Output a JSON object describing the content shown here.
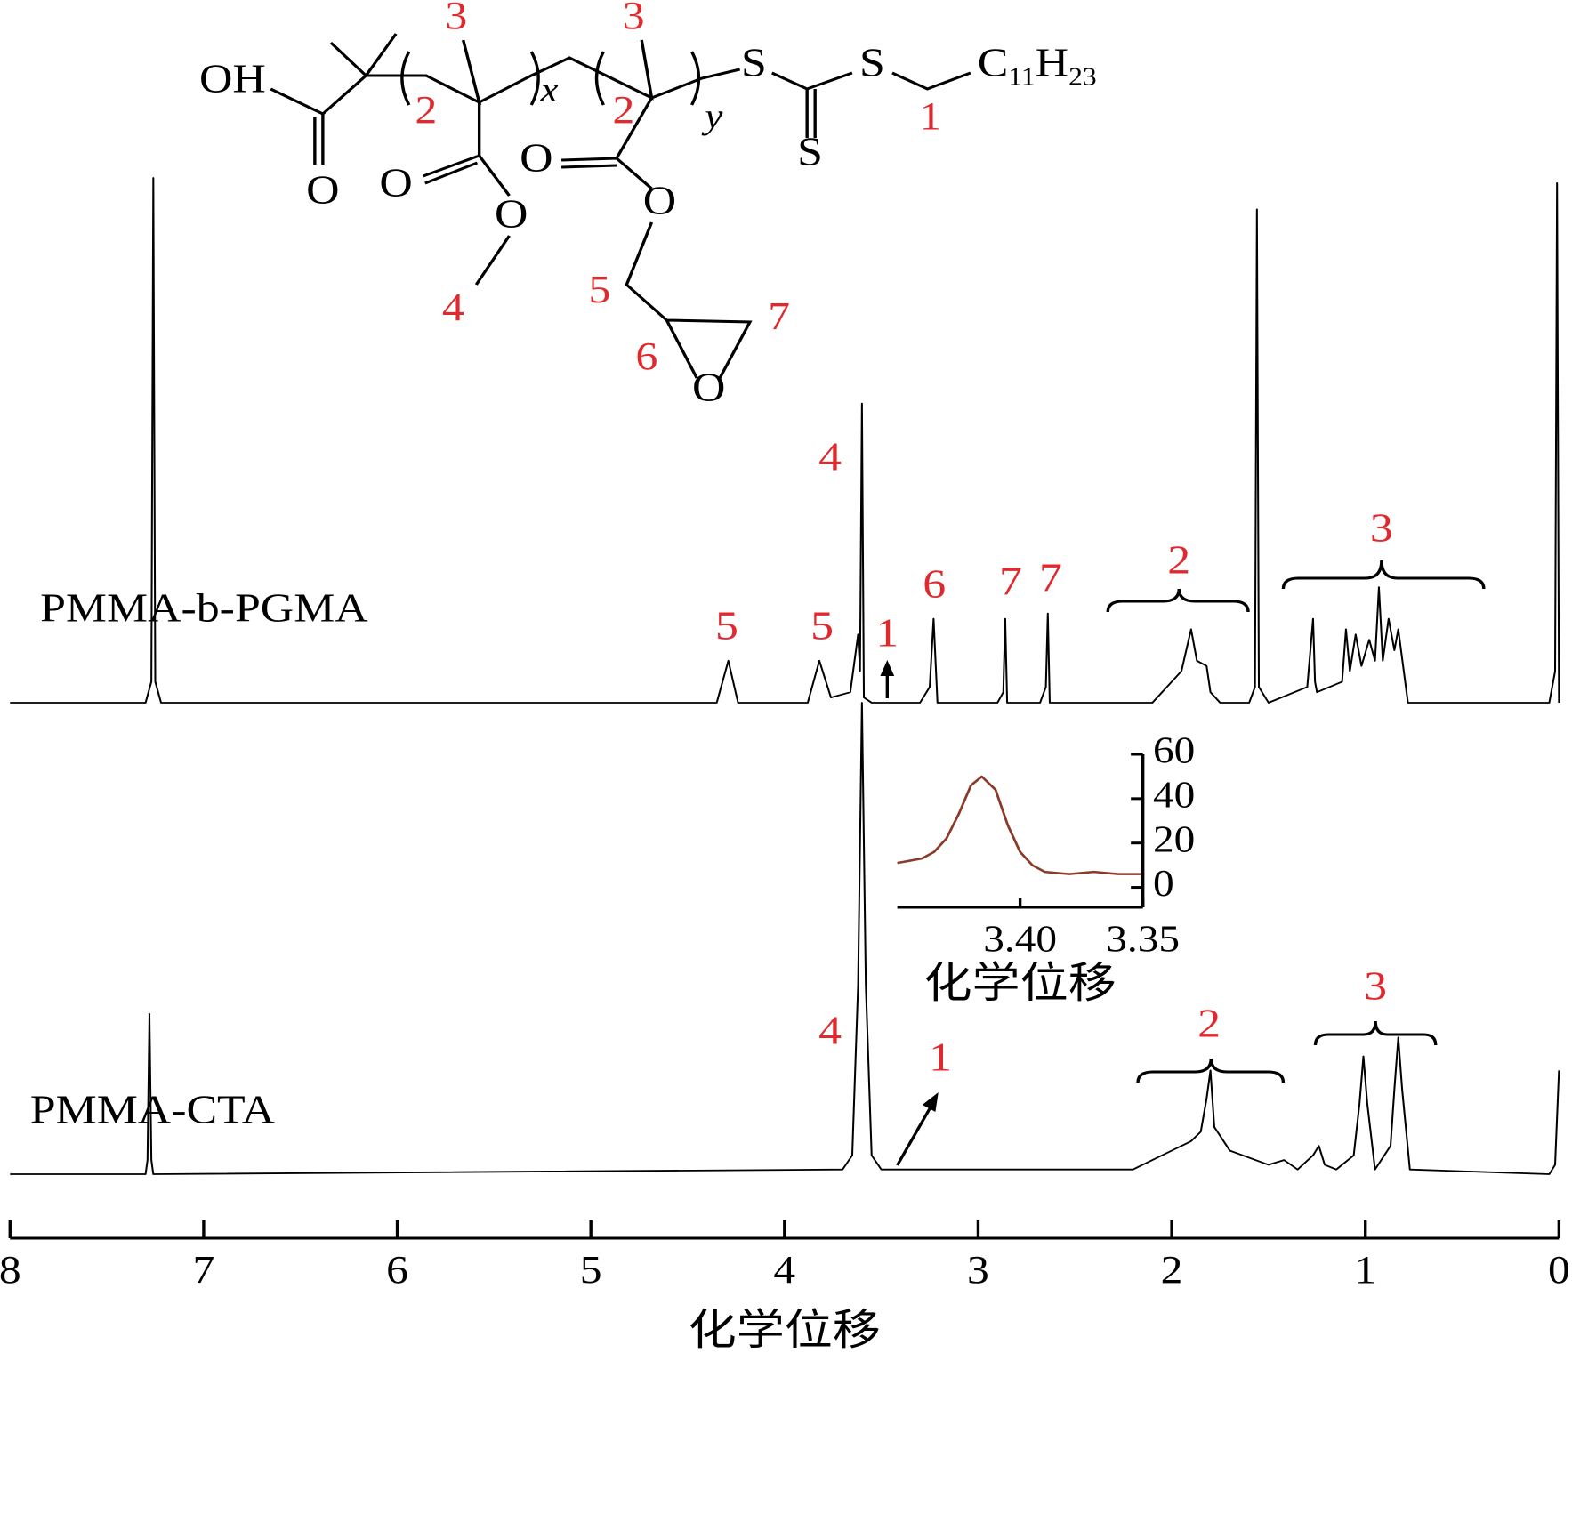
{
  "chart_data": [
    {
      "type": "line",
      "x": [
        8,
        7.3,
        7.27,
        7.26,
        7.25,
        7.22,
        5.5,
        4.35,
        4.29,
        4.24,
        3.88,
        3.82,
        3.76,
        3.66,
        3.62,
        3.61,
        3.6,
        3.59,
        3.55,
        3.3,
        3.25,
        3.23,
        3.21,
        2.9,
        2.87,
        2.86,
        2.85,
        2.68,
        2.65,
        2.64,
        2.63,
        2.6,
        2.1,
        2.0,
        1.95,
        1.9,
        1.87,
        1.82,
        1.8,
        1.75,
        1.6,
        1.57,
        1.56,
        1.55,
        1.5,
        1.3,
        1.27,
        1.26,
        1.25,
        1.12,
        1.1,
        1.08,
        1.05,
        1.02,
        0.98,
        0.95,
        0.93,
        0.91,
        0.88,
        0.85,
        0.83,
        0.78,
        0.05,
        0.02,
        0.01,
        0
      ],
      "series": [
        {
          "name": "PMMA-b-PGMA",
          "color": "#000000",
          "values": [
            0,
            0,
            4,
            100,
            4,
            0,
            0,
            0,
            8,
            0,
            0,
            8,
            1,
            2,
            13,
            6,
            57,
            1,
            0,
            0,
            3,
            16,
            0,
            0,
            2,
            16,
            0,
            0,
            3,
            17,
            0,
            0,
            0,
            4,
            6,
            14,
            8,
            7,
            2,
            0,
            0,
            3,
            94,
            3,
            0,
            3,
            16,
            4,
            2,
            4,
            14,
            6,
            13,
            7,
            12,
            8,
            22,
            8,
            16,
            10,
            14,
            0,
            0,
            6,
            99,
            0
          ]
        }
      ],
      "xlim": [
        8,
        0
      ],
      "ylim": [
        0,
        100
      ],
      "annotations": [
        "4",
        "5",
        "5",
        "1",
        "6",
        "7",
        "7",
        "2",
        "3"
      ]
    },
    {
      "type": "line",
      "x": [
        8,
        7.3,
        7.29,
        7.28,
        7.27,
        7.26,
        3.7,
        3.65,
        3.62,
        3.6,
        3.58,
        3.55,
        3.5,
        2.2,
        2.0,
        1.9,
        1.85,
        1.82,
        1.8,
        1.78,
        1.7,
        1.5,
        1.42,
        1.35,
        1.27,
        1.24,
        1.21,
        1.15,
        1.06,
        1.03,
        1.01,
        0.99,
        0.95,
        0.87,
        0.85,
        0.83,
        0.81,
        0.77,
        0.05,
        0.02,
        0
      ],
      "series": [
        {
          "name": "PMMA-CTA",
          "color": "#000000",
          "values": [
            0,
            0,
            3,
            34,
            3,
            0,
            1,
            4,
            40,
            100,
            40,
            4,
            1,
            1,
            5,
            7,
            9,
            16,
            22,
            10,
            5,
            2,
            3,
            1,
            4,
            6,
            2,
            1,
            4,
            15,
            25,
            15,
            1,
            6,
            18,
            29,
            18,
            1,
            0,
            2,
            22
          ]
        }
      ],
      "xlim": [
        8,
        0
      ],
      "ylim": [
        0,
        100
      ],
      "xticks": [
        8,
        7,
        6,
        5,
        4,
        3,
        2,
        1,
        0
      ],
      "xlabel": "化学位移",
      "annotations": [
        "4",
        "1",
        "2",
        "3"
      ]
    },
    {
      "type": "line",
      "x": [
        3.45,
        3.44,
        3.435,
        3.43,
        3.425,
        3.42,
        3.4156,
        3.41,
        3.405,
        3.4,
        3.395,
        3.39,
        3.38,
        3.37,
        3.36,
        3.35
      ],
      "series": [
        {
          "color": "#8b3a2a",
          "values": [
            11,
            13,
            16,
            22,
            33,
            46,
            50,
            44,
            28,
            16,
            10,
            7,
            6,
            7,
            6,
            6
          ]
        }
      ],
      "xlim": [
        3.45,
        3.35
      ],
      "ylim": [
        -9,
        60
      ],
      "xticks": [
        {
          "value": 3.4,
          "label": "3.40"
        },
        {
          "value": 3.35,
          "label": "3.35"
        }
      ],
      "yticks": [
        0,
        20,
        40,
        60
      ],
      "y_axis_side": "right",
      "xlabel": "化学位移"
    }
  ],
  "structure": {
    "atoms": [
      "OH",
      "O",
      "O",
      "O",
      "O",
      "O",
      "O",
      "S",
      "S",
      "S"
    ],
    "formula": [
      "C",
      "11",
      "H",
      "23"
    ],
    "repeat_units": [
      "x",
      "y"
    ],
    "locants": [
      "3",
      "3",
      "2",
      "2",
      "1",
      "4",
      "5",
      "6",
      "7"
    ]
  }
}
